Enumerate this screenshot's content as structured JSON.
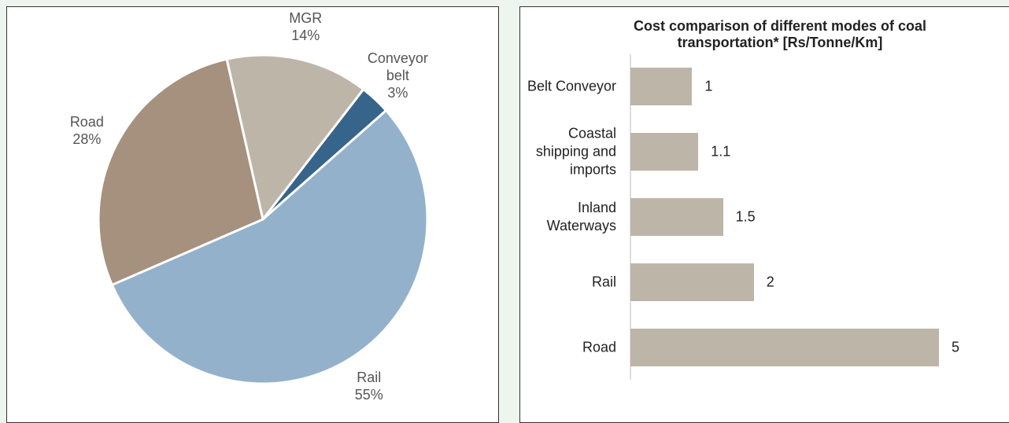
{
  "chart_data": [
    {
      "type": "pie",
      "categories": [
        "MGR",
        "Conveyor belt",
        "Rail",
        "Road"
      ],
      "values": [
        14,
        3,
        55,
        28
      ],
      "value_labels": [
        "14%",
        "3%",
        "55%",
        "28%"
      ],
      "colors": [
        "#bdb5a8",
        "#37648a",
        "#93b1cb",
        "#a5917e"
      ]
    },
    {
      "type": "barh",
      "title": "Cost comparison of different modes of coal transportation* [Rs/Tonne/Km]",
      "categories": [
        "Belt Conveyor",
        "Coastal shipping and imports",
        "Inland Waterways",
        "Rail",
        "Road"
      ],
      "values": [
        1,
        1.1,
        1.5,
        2,
        5
      ],
      "color": "#bdb5a8",
      "xlim": [
        0,
        5
      ]
    }
  ]
}
